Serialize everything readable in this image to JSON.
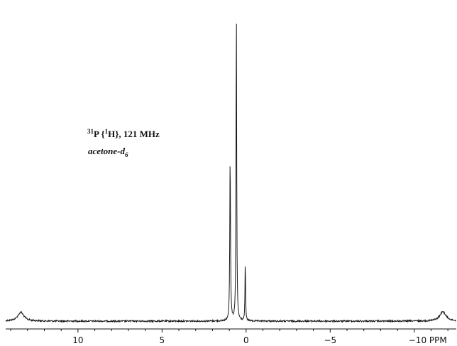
{
  "chart_data": {
    "type": "line",
    "title": "",
    "annotation": {
      "nucleus_mass": "31",
      "nucleus": "P {",
      "decoupled_mass": "1",
      "decoupled_rest": "H}, 121 MHz",
      "solvent_main": "acetone-d",
      "solvent_sub": "6"
    },
    "xlabel": "PPM",
    "xlim": [
      14.3,
      -12.5
    ],
    "x_reversed": true,
    "ylim": [
      0,
      1.0
    ],
    "xticks": [
      10,
      5,
      0,
      -5,
      -10
    ],
    "xtick_labels": [
      "10",
      "5",
      "0",
      "−5",
      "−10 PPM"
    ],
    "grid": false,
    "color": "#1a1a1a",
    "series": [
      {
        "peaks": [
          {
            "ppm": 13.4,
            "intensity": 0.028,
            "width": 0.45,
            "note": "broad"
          },
          {
            "ppm": 0.95,
            "intensity": 0.535,
            "width": 0.05
          },
          {
            "ppm": 0.58,
            "intensity": 1.0,
            "width": 0.045
          },
          {
            "ppm": 0.05,
            "intensity": 0.195,
            "width": 0.04
          },
          {
            "ppm": -11.7,
            "intensity": 0.03,
            "width": 0.45,
            "note": "broad"
          }
        ],
        "baseline": 0.0
      }
    ]
  }
}
